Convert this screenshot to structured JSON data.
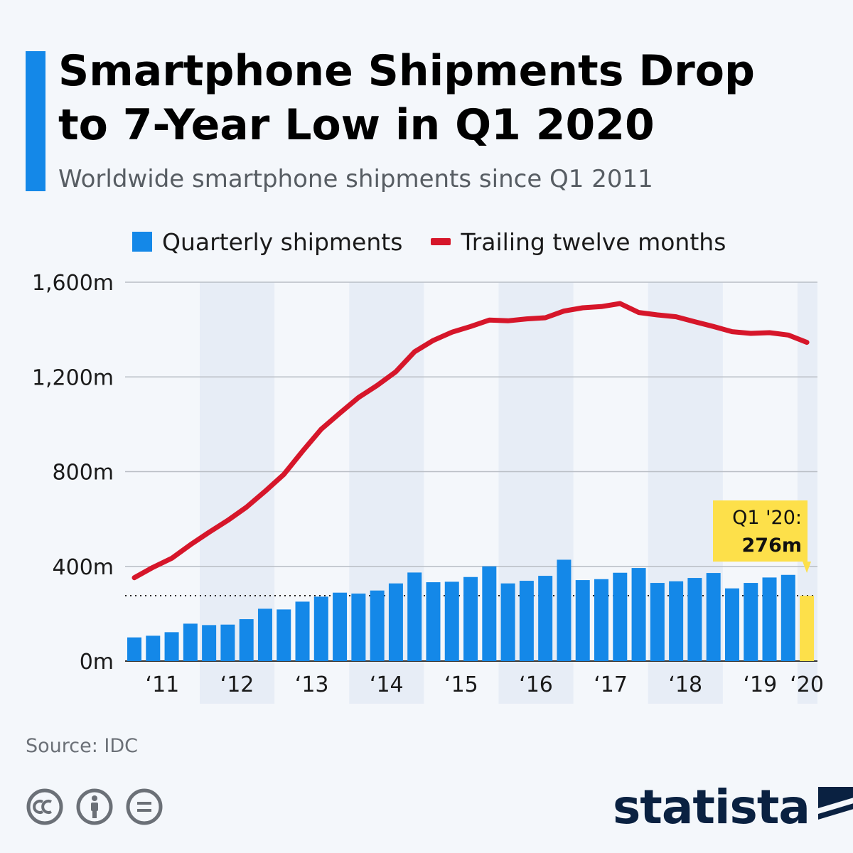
{
  "header": {
    "title": "Smartphone Shipments Drop\nto 7-Year Low in Q1 2020",
    "subtitle": "Worldwide smartphone shipments since Q1 2011"
  },
  "legend": {
    "bars_label": "Quarterly shipments",
    "line_label": "Trailing twelve months"
  },
  "callout": {
    "line1": "Q1 '20:",
    "line2": "276m"
  },
  "footer": {
    "source": "Source: IDC",
    "logo_text": "statista"
  },
  "icons": [
    "creative-commons-icon",
    "attribution-icon",
    "no-derivatives-icon",
    "statista-logo-icon"
  ],
  "colors": {
    "bars": "#1488e8",
    "highlight_bar": "#fde04a",
    "line": "#d6162a",
    "accent": "#1488e8",
    "year_band": "#e7edf6",
    "background": "#f4f7fb"
  },
  "chart_data": {
    "type": "bar",
    "title": "Smartphone Shipments Drop to 7-Year Low in Q1 2020",
    "subtitle": "Worldwide smartphone shipments since Q1 2011",
    "xlabel": "",
    "ylabel": "",
    "ylim": [
      0,
      1600
    ],
    "yticks": [
      "0m",
      "400m",
      "800m",
      "1,200m",
      "1,600m"
    ],
    "ytick_values": [
      0,
      400,
      800,
      1200,
      1600
    ],
    "year_labels": [
      "‘11",
      "‘12",
      "‘13",
      "‘14",
      "‘15",
      "‘16",
      "‘17",
      "‘18",
      "‘19",
      "‘20"
    ],
    "grid": true,
    "legend_position": "top",
    "reference_line": 276,
    "categories": [
      "Q1 2011",
      "Q2 2011",
      "Q3 2011",
      "Q4 2011",
      "Q1 2012",
      "Q2 2012",
      "Q3 2012",
      "Q4 2012",
      "Q1 2013",
      "Q2 2013",
      "Q3 2013",
      "Q4 2013",
      "Q1 2014",
      "Q2 2014",
      "Q3 2014",
      "Q4 2014",
      "Q1 2015",
      "Q2 2015",
      "Q3 2015",
      "Q4 2015",
      "Q1 2016",
      "Q2 2016",
      "Q3 2016",
      "Q4 2016",
      "Q1 2017",
      "Q2 2017",
      "Q3 2017",
      "Q4 2017",
      "Q1 2018",
      "Q2 2018",
      "Q3 2018",
      "Q4 2018",
      "Q1 2019",
      "Q2 2019",
      "Q3 2019",
      "Q4 2019",
      "Q1 2020"
    ],
    "series": [
      {
        "name": "Quarterly shipments",
        "type": "bar",
        "values": [
          100,
          107,
          122,
          158,
          152,
          154,
          177,
          221,
          218,
          251,
          272,
          289,
          285,
          298,
          328,
          374,
          333,
          335,
          355,
          400,
          328,
          339,
          360,
          428,
          342,
          346,
          373,
          393,
          330,
          337,
          351,
          372,
          307,
          330,
          353,
          364,
          276
        ]
      },
      {
        "name": "Trailing twelve months",
        "type": "line",
        "values": [
          352,
          396,
          434,
          491,
          544,
          594,
          650,
          717,
          788,
          886,
          979,
          1047,
          1113,
          1164,
          1222,
          1306,
          1354,
          1389,
          1413,
          1440,
          1437,
          1445,
          1450,
          1478,
          1492,
          1497,
          1510,
          1472,
          1462,
          1454,
          1433,
          1413,
          1391,
          1384,
          1387,
          1377,
          1346
        ]
      }
    ],
    "highlight": {
      "category": "Q1 2020",
      "value": 276
    }
  }
}
